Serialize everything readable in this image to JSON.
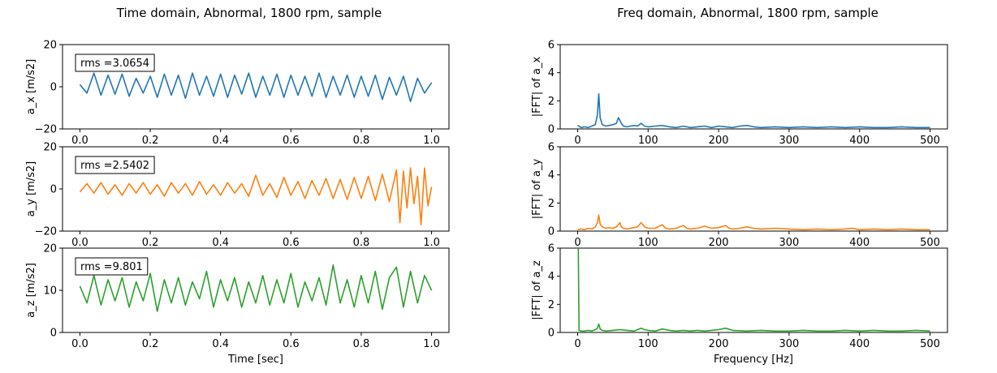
{
  "chart_data": [
    {
      "type": "line",
      "title": "Time domain, Abnormal, 1800 rpm, sample",
      "xlabel": "Time [sec]",
      "xlim": [
        0.0,
        1.0
      ],
      "xticks": [
        "0.0",
        "0.2",
        "0.4",
        "0.6",
        "0.8",
        "1.0"
      ],
      "xtick_values": [
        0.0,
        0.2,
        0.4,
        0.6,
        0.8,
        1.0
      ],
      "subplots": [
        {
          "ylabel": "a_x [m/s2]",
          "ylim": [
            -20,
            20
          ],
          "yticks": [
            "−20",
            "0",
            "20"
          ],
          "ytick_values": [
            -20,
            0,
            20
          ],
          "annotation": "rms =3.0654",
          "color": "#1f77b4",
          "series": [
            {
              "x": [
                0.0,
                0.02,
                0.04,
                0.06,
                0.08,
                0.1,
                0.12,
                0.14,
                0.16,
                0.18,
                0.2,
                0.22,
                0.24,
                0.26,
                0.28,
                0.3,
                0.32,
                0.34,
                0.36,
                0.38,
                0.4,
                0.42,
                0.44,
                0.46,
                0.48,
                0.5,
                0.52,
                0.54,
                0.56,
                0.58,
                0.6,
                0.62,
                0.64,
                0.66,
                0.68,
                0.7,
                0.72,
                0.74,
                0.76,
                0.78,
                0.8,
                0.82,
                0.84,
                0.86,
                0.88,
                0.9,
                0.92,
                0.94,
                0.96,
                0.98,
                1.0
              ],
              "values": [
                1.0,
                -3.0,
                6.5,
                -4.0,
                5.5,
                -3.5,
                6.0,
                -4.5,
                4.0,
                -3.0,
                5.0,
                -5.0,
                6.0,
                -4.0,
                5.5,
                -5.5,
                6.5,
                -4.0,
                5.0,
                -4.5,
                6.0,
                -5.0,
                5.5,
                -3.5,
                6.5,
                -5.0,
                5.0,
                -4.0,
                6.0,
                -5.0,
                5.5,
                -4.0,
                5.0,
                -4.5,
                6.5,
                -5.0,
                5.0,
                -4.0,
                5.5,
                -5.0,
                5.0,
                -4.5,
                5.5,
                -6.0,
                4.5,
                -4.0,
                5.0,
                -7.0,
                4.0,
                -3.0,
                2.0
              ]
            }
          ]
        },
        {
          "ylabel": "a_y [m/s2]",
          "ylim": [
            -20,
            20
          ],
          "yticks": [
            "−20",
            "0",
            "20"
          ],
          "ytick_values": [
            -20,
            0,
            20
          ],
          "annotation": "rms =2.5402",
          "color": "#ff7f0e",
          "series": [
            {
              "x": [
                0.0,
                0.02,
                0.04,
                0.06,
                0.08,
                0.1,
                0.12,
                0.14,
                0.16,
                0.18,
                0.2,
                0.22,
                0.24,
                0.26,
                0.28,
                0.3,
                0.32,
                0.34,
                0.36,
                0.38,
                0.4,
                0.42,
                0.44,
                0.46,
                0.48,
                0.5,
                0.52,
                0.54,
                0.56,
                0.58,
                0.6,
                0.62,
                0.64,
                0.66,
                0.68,
                0.7,
                0.72,
                0.74,
                0.76,
                0.78,
                0.8,
                0.82,
                0.84,
                0.86,
                0.88,
                0.9,
                0.91,
                0.92,
                0.93,
                0.94,
                0.95,
                0.96,
                0.97,
                0.98,
                0.99,
                1.0
              ],
              "values": [
                -1.5,
                2.5,
                -2.0,
                3.0,
                -2.5,
                2.0,
                -3.0,
                2.5,
                -2.0,
                3.0,
                -2.5,
                2.0,
                -3.5,
                3.0,
                -2.0,
                2.5,
                -3.0,
                3.5,
                -2.5,
                2.0,
                -3.0,
                3.0,
                -2.0,
                2.5,
                -3.5,
                6.5,
                -3.0,
                2.5,
                -4.0,
                5.5,
                -3.0,
                3.5,
                -4.5,
                4.0,
                -3.0,
                5.0,
                -4.5,
                4.5,
                -5.0,
                5.5,
                -4.5,
                6.0,
                -5.5,
                7.0,
                -6.0,
                9.0,
                -16.0,
                8.5,
                -9.0,
                10.0,
                -7.0,
                6.0,
                -17.0,
                10.0,
                -8.0,
                1.0
              ]
            }
          ]
        },
        {
          "ylabel": "a_z [m/s2]",
          "ylim": [
            0,
            20
          ],
          "yticks": [
            "0",
            "10",
            "20"
          ],
          "ytick_values": [
            0,
            10,
            20
          ],
          "annotation": "rms =9.801",
          "color": "#2ca02c",
          "series": [
            {
              "x": [
                0.0,
                0.02,
                0.04,
                0.06,
                0.08,
                0.1,
                0.12,
                0.14,
                0.16,
                0.18,
                0.2,
                0.22,
                0.24,
                0.26,
                0.28,
                0.3,
                0.32,
                0.34,
                0.36,
                0.38,
                0.4,
                0.42,
                0.44,
                0.46,
                0.48,
                0.5,
                0.52,
                0.54,
                0.56,
                0.58,
                0.6,
                0.62,
                0.64,
                0.66,
                0.68,
                0.7,
                0.72,
                0.74,
                0.76,
                0.78,
                0.8,
                0.82,
                0.84,
                0.86,
                0.88,
                0.9,
                0.92,
                0.94,
                0.96,
                0.98,
                1.0
              ],
              "values": [
                11.0,
                7.0,
                13.5,
                6.5,
                12.5,
                7.5,
                13.0,
                6.0,
                12.0,
                7.5,
                14.0,
                5.0,
                12.5,
                7.0,
                13.0,
                6.5,
                12.0,
                8.0,
                14.5,
                6.0,
                12.5,
                7.5,
                13.0,
                6.0,
                12.0,
                7.0,
                13.5,
                6.5,
                12.5,
                7.0,
                14.0,
                6.0,
                12.0,
                7.5,
                13.0,
                6.5,
                16.0,
                7.0,
                12.5,
                6.0,
                13.5,
                7.0,
                14.5,
                5.5,
                13.0,
                15.5,
                6.0,
                14.5,
                7.0,
                13.5,
                10.0
              ]
            }
          ]
        }
      ]
    },
    {
      "type": "line",
      "title": "Freq domain, Abnormal, 1800 rpm, sample",
      "xlabel": "Frequency [Hz]",
      "xlim": [
        0,
        500
      ],
      "xticks": [
        "0",
        "100",
        "200",
        "300",
        "400",
        "500"
      ],
      "xtick_values": [
        0,
        100,
        200,
        300,
        400,
        500
      ],
      "subplots": [
        {
          "ylabel": "|FFT| of a_x",
          "ylim": [
            0,
            6
          ],
          "yticks": [
            "0",
            "2",
            "4",
            "6"
          ],
          "ytick_values": [
            0,
            2,
            4,
            6
          ],
          "color": "#1f77b4",
          "series": [
            {
              "x": [
                0,
                5,
                10,
                15,
                20,
                25,
                28,
                30,
                32,
                35,
                40,
                45,
                50,
                55,
                58,
                60,
                62,
                65,
                70,
                75,
                80,
                85,
                90,
                95,
                100,
                110,
                120,
                130,
                140,
                150,
                160,
                170,
                180,
                190,
                200,
                210,
                220,
                230,
                240,
                250,
                260,
                280,
                300,
                320,
                340,
                360,
                380,
                400,
                420,
                440,
                460,
                480,
                500
              ],
              "values": [
                0.25,
                0.1,
                0.15,
                0.1,
                0.2,
                0.3,
                1.0,
                2.5,
                0.8,
                0.3,
                0.2,
                0.25,
                0.3,
                0.4,
                0.8,
                0.6,
                0.4,
                0.2,
                0.15,
                0.2,
                0.25,
                0.2,
                0.4,
                0.2,
                0.15,
                0.2,
                0.25,
                0.15,
                0.1,
                0.2,
                0.1,
                0.15,
                0.2,
                0.1,
                0.2,
                0.15,
                0.1,
                0.2,
                0.25,
                0.15,
                0.1,
                0.15,
                0.1,
                0.15,
                0.1,
                0.15,
                0.1,
                0.15,
                0.1,
                0.1,
                0.15,
                0.1,
                0.1
              ]
            }
          ]
        },
        {
          "ylabel": "|FFT| of a_y",
          "ylim": [
            0,
            6
          ],
          "yticks": [
            "0",
            "2",
            "4",
            "6"
          ],
          "ytick_values": [
            0,
            2,
            4,
            6
          ],
          "color": "#ff7f0e",
          "series": [
            {
              "x": [
                0,
                5,
                10,
                15,
                20,
                25,
                28,
                30,
                32,
                35,
                40,
                45,
                50,
                55,
                60,
                62,
                65,
                70,
                75,
                80,
                85,
                90,
                95,
                100,
                110,
                120,
                125,
                130,
                140,
                150,
                155,
                160,
                170,
                180,
                190,
                200,
                210,
                215,
                220,
                230,
                240,
                250,
                260,
                280,
                300,
                320,
                340,
                360,
                380,
                390,
                400,
                420,
                440,
                460,
                480,
                500
              ],
              "values": [
                0.1,
                0.15,
                0.1,
                0.2,
                0.15,
                0.3,
                0.6,
                1.15,
                0.5,
                0.3,
                0.2,
                0.25,
                0.2,
                0.3,
                0.6,
                0.3,
                0.2,
                0.15,
                0.2,
                0.25,
                0.3,
                0.6,
                0.3,
                0.2,
                0.2,
                0.45,
                0.2,
                0.15,
                0.2,
                0.4,
                0.2,
                0.15,
                0.2,
                0.35,
                0.2,
                0.25,
                0.4,
                0.2,
                0.15,
                0.2,
                0.3,
                0.2,
                0.15,
                0.2,
                0.15,
                0.1,
                0.15,
                0.1,
                0.15,
                0.2,
                0.1,
                0.15,
                0.1,
                0.15,
                0.1,
                0.1
              ]
            }
          ]
        },
        {
          "ylabel": "|FFT| of a_z",
          "ylim": [
            0,
            6
          ],
          "yticks": [
            "0",
            "2",
            "4",
            "6"
          ],
          "ytick_values": [
            0,
            2,
            4,
            6
          ],
          "color": "#2ca02c",
          "series": [
            {
              "x": [
                0,
                1,
                2,
                5,
                10,
                15,
                20,
                25,
                28,
                30,
                32,
                35,
                40,
                50,
                60,
                70,
                80,
                90,
                95,
                100,
                110,
                120,
                130,
                140,
                150,
                160,
                170,
                180,
                190,
                200,
                210,
                220,
                240,
                260,
                280,
                300,
                320,
                340,
                360,
                380,
                400,
                420,
                440,
                460,
                480,
                500
              ],
              "values": [
                6.0,
                6.0,
                0.15,
                0.1,
                0.1,
                0.15,
                0.1,
                0.2,
                0.3,
                0.6,
                0.25,
                0.15,
                0.1,
                0.15,
                0.2,
                0.15,
                0.1,
                0.3,
                0.2,
                0.15,
                0.1,
                0.25,
                0.15,
                0.1,
                0.15,
                0.1,
                0.15,
                0.1,
                0.15,
                0.2,
                0.3,
                0.15,
                0.1,
                0.15,
                0.1,
                0.1,
                0.15,
                0.1,
                0.1,
                0.15,
                0.1,
                0.15,
                0.1,
                0.1,
                0.15,
                0.1
              ]
            }
          ]
        }
      ]
    }
  ]
}
